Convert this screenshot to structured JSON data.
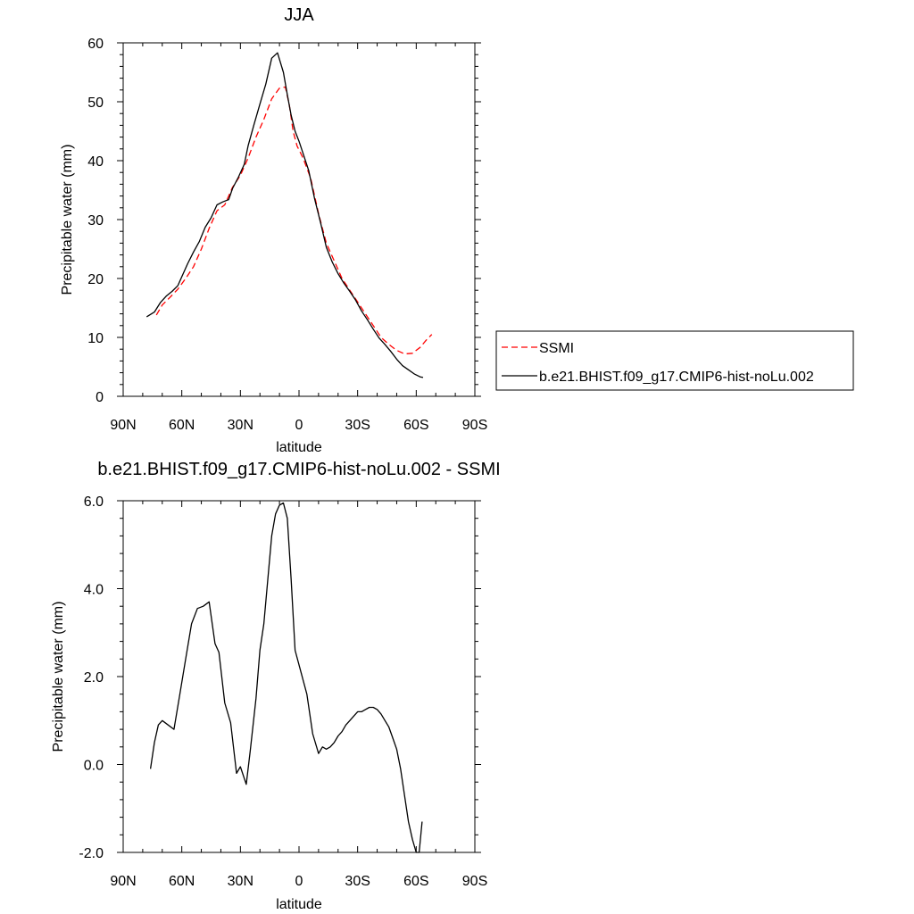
{
  "chart_data": [
    {
      "type": "line",
      "title": "JJA",
      "xlabel": "latitude",
      "ylabel": "Precipitable water (mm)",
      "xlim": [
        90,
        -90
      ],
      "ylim": [
        0,
        60
      ],
      "x_ticks": [
        90,
        60,
        30,
        0,
        -30,
        -60,
        -90
      ],
      "x_tick_labels": [
        "90N",
        "60N",
        "30N",
        "0",
        "30S",
        "60S",
        "90S"
      ],
      "y_ticks": [
        0,
        10,
        20,
        30,
        40,
        50,
        60
      ],
      "y_tick_labels": [
        "0",
        "10",
        "20",
        "30",
        "40",
        "50",
        "60"
      ],
      "legend_position": "right",
      "series": [
        {
          "name": "SSMI",
          "color": "#ff0000",
          "dash": "dashed",
          "x": [
            73,
            70,
            66,
            62,
            58,
            54,
            50,
            46,
            42,
            38,
            34,
            30,
            26,
            22,
            18,
            14,
            10,
            7,
            5,
            3,
            1,
            -2,
            -6,
            -10,
            -14,
            -18,
            -22,
            -26,
            -30,
            -34,
            -38,
            -42,
            -46,
            -50,
            -54,
            -58,
            -62,
            -65,
            -68
          ],
          "y": [
            13.8,
            15.5,
            16.8,
            18.2,
            20,
            22,
            25,
            28.5,
            31.5,
            32.5,
            35.5,
            37.5,
            40.5,
            44,
            47,
            50.5,
            52.3,
            52.5,
            49.5,
            45,
            42.5,
            40.5,
            37,
            31,
            26,
            23,
            20,
            18,
            16,
            14,
            12,
            10,
            8.8,
            7.8,
            7.2,
            7.3,
            8.3,
            9.5,
            10.5
          ]
        },
        {
          "name": "b.e21.BHIST.f09_g17.CMIP6-hist-noLu.002",
          "color": "#000000",
          "dash": "solid",
          "x": [
            78,
            74,
            71,
            68,
            65,
            62,
            60,
            57,
            54,
            51,
            48,
            45,
            42,
            39,
            36,
            34,
            31,
            28,
            26,
            23,
            20,
            17,
            14,
            11,
            8,
            6,
            4,
            2,
            0,
            -2,
            -5,
            -8,
            -11,
            -14,
            -17,
            -20,
            -23,
            -26,
            -29,
            -32,
            -35,
            -38,
            -41,
            -44,
            -47,
            -50,
            -53,
            -56,
            -59,
            -62,
            -63.5
          ],
          "y": [
            13.5,
            14.3,
            15.9,
            17,
            17.8,
            18.8,
            20.3,
            22.5,
            24.5,
            26.3,
            28.7,
            30.3,
            32.5,
            33,
            33.4,
            35.3,
            37.2,
            39.4,
            42.6,
            46.2,
            49.6,
            53,
            57.4,
            58.3,
            55,
            51.2,
            47.7,
            45,
            43.3,
            41.3,
            38.3,
            33.5,
            29.5,
            25.3,
            22.8,
            20.8,
            19.2,
            17.8,
            16.3,
            14.5,
            13,
            11.4,
            9.9,
            8.8,
            7.6,
            6.3,
            5.2,
            4.5,
            3.8,
            3.3,
            3.2
          ]
        }
      ]
    },
    {
      "type": "line",
      "title": "b.e21.BHIST.f09_g17.CMIP6-hist-noLu.002 - SSMI",
      "xlabel": "latitude",
      "ylabel": "Precipitable water (mm)",
      "xlim": [
        90,
        -90
      ],
      "ylim": [
        -2,
        6
      ],
      "x_ticks": [
        90,
        60,
        30,
        0,
        -30,
        -60,
        -90
      ],
      "x_tick_labels": [
        "90N",
        "60N",
        "30N",
        "0",
        "30S",
        "60S",
        "90S"
      ],
      "y_ticks": [
        -2,
        0,
        2,
        4,
        6
      ],
      "y_tick_labels": [
        "-2.0",
        "0.0",
        "2.0",
        "4.0",
        "6.0"
      ],
      "series": [
        {
          "color": "#000000",
          "dash": "solid",
          "x": [
            76,
            74,
            72,
            70,
            67,
            64,
            61,
            58,
            55,
            52,
            49,
            46,
            43,
            41,
            38,
            35,
            32,
            30,
            27,
            25,
            22,
            20,
            18,
            16,
            14,
            12,
            10,
            8,
            6,
            4,
            2,
            -1,
            -4,
            -7,
            -10,
            -12,
            -14,
            -16,
            -18,
            -20,
            -22,
            -24,
            -26,
            -28,
            -30,
            -32,
            -34,
            -36,
            -38,
            -40,
            -42,
            -44,
            -46,
            -48,
            -50,
            -52,
            -54,
            -56,
            -58,
            -60,
            -61.5,
            -63
          ],
          "y": [
            -0.1,
            0.5,
            0.9,
            1.0,
            0.9,
            0.8,
            1.6,
            2.4,
            3.2,
            3.55,
            3.6,
            3.7,
            2.75,
            2.55,
            1.4,
            0.95,
            -0.2,
            -0.05,
            -0.45,
            0.3,
            1.5,
            2.6,
            3.2,
            4.2,
            5.2,
            5.7,
            5.9,
            5.95,
            5.6,
            4.2,
            2.6,
            2.1,
            1.6,
            0.7,
            0.25,
            0.4,
            0.35,
            0.4,
            0.5,
            0.65,
            0.75,
            0.9,
            1.0,
            1.1,
            1.2,
            1.2,
            1.25,
            1.3,
            1.3,
            1.25,
            1.15,
            1.0,
            0.85,
            0.6,
            0.35,
            -0.1,
            -0.7,
            -1.3,
            -1.7,
            -2.0,
            -2.0,
            -1.3
          ]
        }
      ]
    }
  ]
}
